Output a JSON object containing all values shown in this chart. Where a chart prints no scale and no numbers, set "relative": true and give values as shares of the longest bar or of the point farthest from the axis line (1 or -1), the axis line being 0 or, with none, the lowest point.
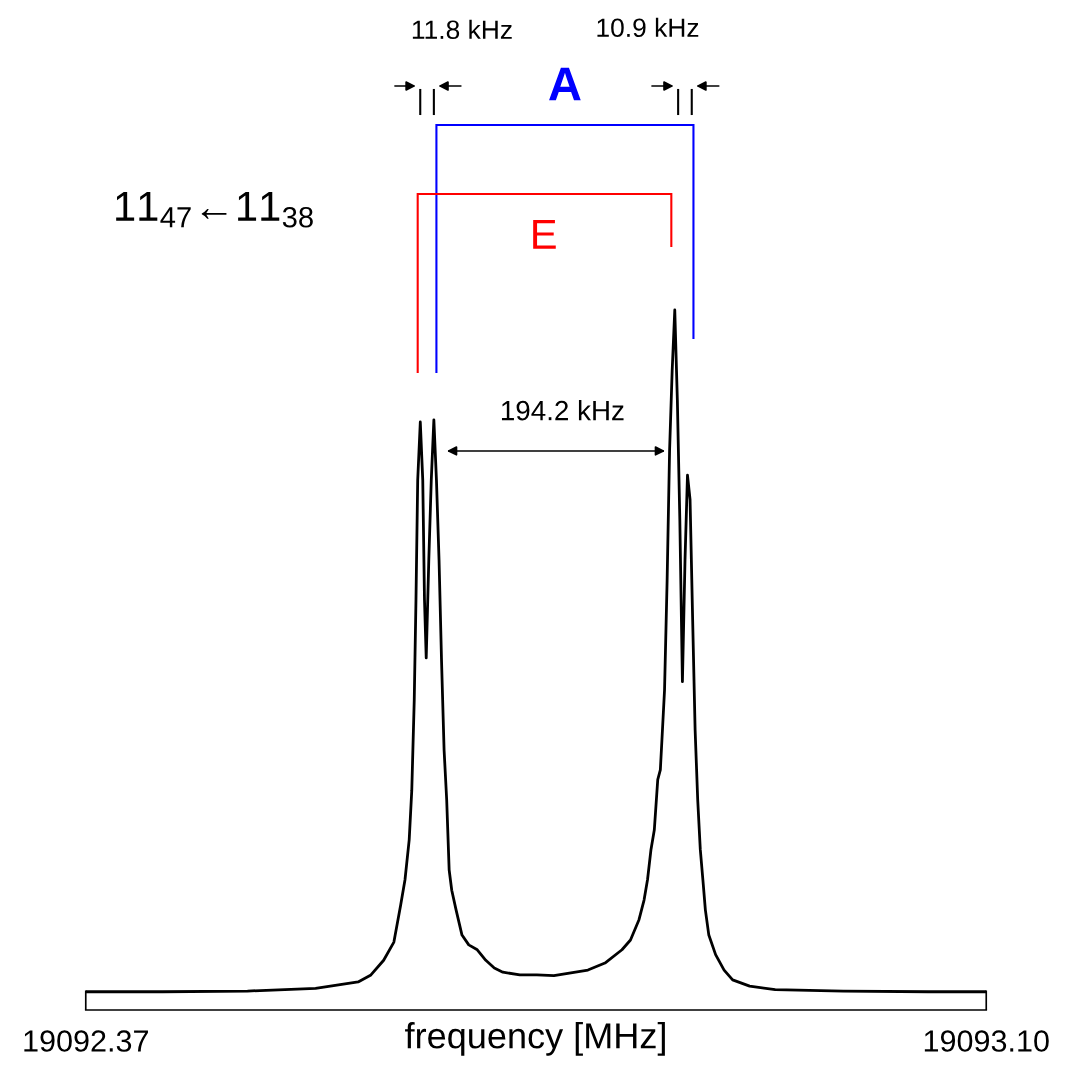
{
  "chart_data": {
    "type": "line",
    "relative": true,
    "xlabel": "frequency [MHz]",
    "xlim": [
      19092.37,
      19093.1
    ],
    "xticks": [
      19092.37,
      {
        "value": 19093.1,
        "label": "19093.10"
      }
    ],
    "tick_labels": "x",
    "grid": false,
    "legend": false,
    "marker": "none",
    "line_style": "solid",
    "annotations": [
      "11$_{47}$←11$_{38}$",
      "11.8 kHz",
      "10.9 kHz",
      "A",
      "E",
      "194.2 kHz"
    ],
    "series": [
      {
        "color": "#000000",
        "x": [
          19092.37,
          19092.4321,
          19092.5011,
          19092.5563,
          19092.5908,
          19092.6012,
          19092.6115,
          19092.6198,
          19092.6253,
          19092.6288,
          19092.6322,
          19092.6343,
          19092.6363,
          19092.6377,
          19092.6391,
          19092.6412,
          19092.6432,
          19092.6446,
          19092.646,
          19092.6481,
          19092.6501,
          19092.6522,
          19092.6543,
          19092.6564,
          19092.6584,
          19092.6605,
          19092.6626,
          19092.6646,
          19092.6667,
          19092.6702,
          19092.675,
          19092.6805,
          19092.6874,
          19092.6943,
          19092.7012,
          19092.7081,
          19092.7219,
          19092.7357,
          19092.7495,
          19092.7633,
          19092.7771,
          19092.7909,
          19092.8047,
          19092.8116,
          19092.8185,
          19092.8226,
          19092.8254,
          19092.8282,
          19092.8309,
          19092.8337,
          19092.8358,
          19092.8371,
          19092.8392,
          19092.8413,
          19092.8433,
          19092.8454,
          19092.8475,
          19092.8496,
          19092.8516,
          19092.8537,
          19092.8558,
          19092.8578,
          19092.8599,
          19092.862,
          19092.864,
          19092.8661,
          19092.8682,
          19092.8703,
          19092.8723,
          19092.8751,
          19092.8806,
          19092.8875,
          19092.8944,
          19092.9082,
          19092.9289,
          19092.9841,
          19093.0531,
          19093.1
        ],
        "values": [
          0.026,
          0.026,
          0.027,
          0.031,
          0.04,
          0.05,
          0.071,
          0.097,
          0.15,
          0.186,
          0.243,
          0.314,
          0.443,
          0.586,
          0.757,
          0.84,
          0.757,
          0.586,
          0.503,
          0.643,
          0.757,
          0.843,
          0.757,
          0.643,
          0.5,
          0.371,
          0.3,
          0.2,
          0.171,
          0.143,
          0.107,
          0.093,
          0.086,
          0.071,
          0.06,
          0.054,
          0.05,
          0.05,
          0.049,
          0.053,
          0.057,
          0.067,
          0.086,
          0.1,
          0.129,
          0.157,
          0.186,
          0.229,
          0.257,
          0.329,
          0.343,
          0.386,
          0.457,
          0.614,
          0.8,
          0.914,
          1,
          0.871,
          0.7,
          0.469,
          0.643,
          0.764,
          0.729,
          0.557,
          0.4,
          0.3,
          0.229,
          0.186,
          0.143,
          0.107,
          0.079,
          0.057,
          0.043,
          0.034,
          0.029,
          0.027,
          0.026,
          0.026
        ]
      }
    ]
  }
}
